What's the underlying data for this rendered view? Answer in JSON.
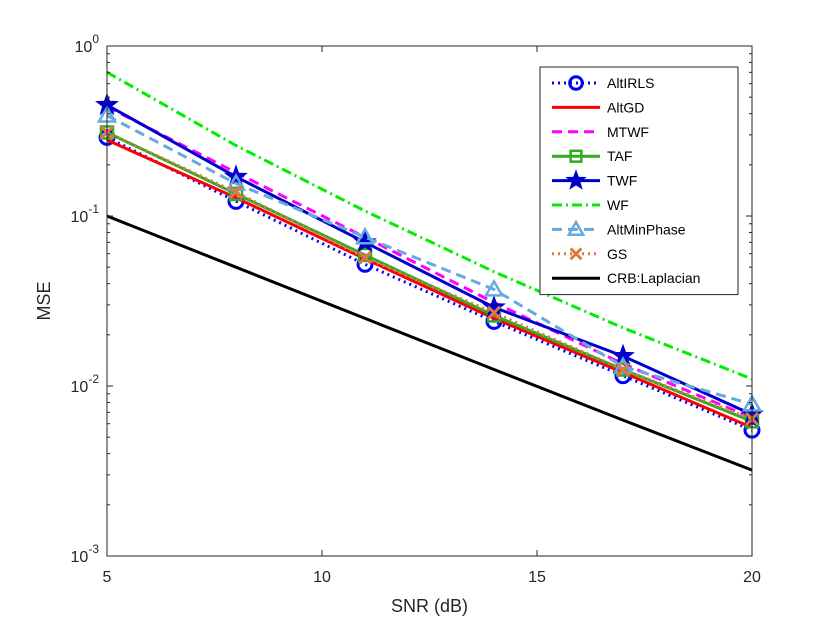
{
  "chart_data": {
    "type": "line",
    "title": "",
    "xlabel": "SNR (dB)",
    "ylabel": "MSE",
    "yscale": "log",
    "xlim": [
      5,
      20
    ],
    "ylim": [
      0.001,
      1
    ],
    "xticks": [
      5,
      10,
      15,
      20
    ],
    "xtick_labels": [
      "5",
      "10",
      "15",
      "20"
    ],
    "yticks": [
      0.001,
      0.01,
      0.1,
      1
    ],
    "ytick_base": "10",
    "ytick_exps": [
      "-3",
      "-2",
      "-1",
      "0"
    ],
    "legend_position": "top-right",
    "x": [
      5,
      8,
      11,
      14,
      17,
      20
    ],
    "series": [
      {
        "name": "AltIRLS",
        "color": "#0000ff",
        "dash": "dot",
        "marker": "circle",
        "values": [
          0.29,
          0.122,
          0.052,
          0.024,
          0.0115,
          0.0055
        ]
      },
      {
        "name": "AltGD",
        "color": "#ff0000",
        "dash": "solid",
        "marker": "none",
        "values": [
          0.28,
          0.128,
          0.056,
          0.025,
          0.012,
          0.0057
        ]
      },
      {
        "name": "MTWF",
        "color": "#ff00ff",
        "dash": "dash",
        "marker": "none",
        "values": [
          0.44,
          0.18,
          0.075,
          0.031,
          0.0135,
          0.0065
        ]
      },
      {
        "name": "TAF",
        "color": "#33aa22",
        "dash": "solid",
        "marker": "square",
        "values": [
          0.31,
          0.135,
          0.059,
          0.026,
          0.0125,
          0.0062
        ]
      },
      {
        "name": "TWF",
        "color": "#0000cc",
        "dash": "solid",
        "marker": "star",
        "values": [
          0.45,
          0.17,
          0.07,
          0.029,
          0.015,
          0.0068
        ]
      },
      {
        "name": "WF",
        "color": "#00ee00",
        "dash": "dashdot",
        "marker": "none",
        "values": [
          0.7,
          0.26,
          0.107,
          0.047,
          0.022,
          0.011
        ]
      },
      {
        "name": "AltMinPhase",
        "color": "#66aadd",
        "dash": "dash",
        "marker": "triangle",
        "values": [
          0.39,
          0.155,
          0.075,
          0.037,
          0.013,
          0.0078
        ]
      },
      {
        "name": "GS",
        "color": "#dd7744",
        "dash": "dot",
        "marker": "x",
        "values": [
          0.31,
          0.138,
          0.057,
          0.027,
          0.0125,
          0.0064
        ]
      },
      {
        "name": "CRB:Laplacian",
        "color": "#000000",
        "dash": "solid",
        "marker": "none",
        "values": [
          0.1,
          0.05,
          0.025,
          0.0125,
          0.0063,
          0.0032
        ]
      }
    ]
  }
}
